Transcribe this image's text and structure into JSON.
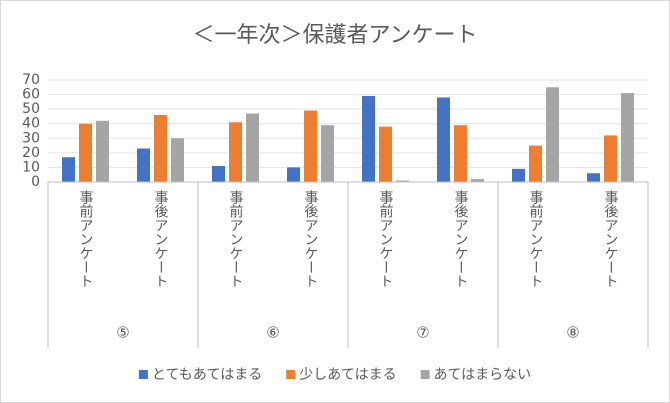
{
  "chart_data": {
    "type": "bar",
    "title": "＜一年次＞保護者アンケート",
    "categories": [
      "事前アンケート",
      "事後アンケート",
      "事前アンケート",
      "事後アンケート",
      "事前アンケート",
      "事後アンケート",
      "事前アンケート",
      "事後アンケート"
    ],
    "category_groups": [
      "⑤",
      "⑥",
      "⑦",
      "⑧"
    ],
    "series": [
      {
        "name": "とてもあてはまる",
        "color": "#4472c4",
        "values": [
          17,
          23,
          11,
          10,
          59,
          58,
          9,
          6
        ]
      },
      {
        "name": "少しあてはまる",
        "color": "#ed7d31",
        "values": [
          40,
          46,
          41,
          49,
          38,
          39,
          25,
          32
        ]
      },
      {
        "name": "あてはまらない",
        "color": "#a5a5a5",
        "values": [
          42,
          30,
          47,
          39,
          1,
          2,
          65,
          61
        ]
      }
    ],
    "ylim": [
      0,
      70
    ],
    "yticks": [
      0,
      10,
      20,
      30,
      40,
      50,
      60,
      70
    ],
    "grid": true,
    "legend": "bottom"
  }
}
